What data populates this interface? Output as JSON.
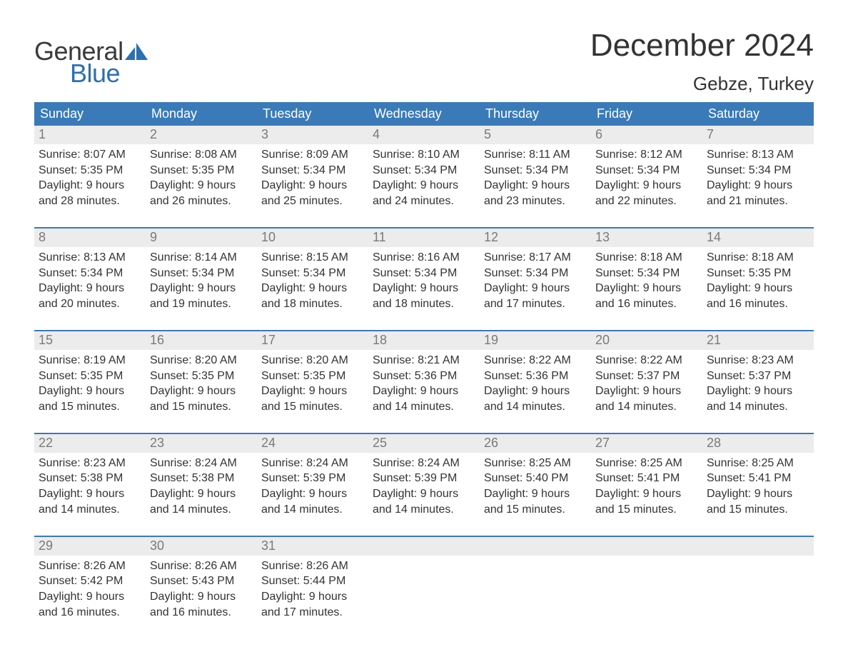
{
  "brand": {
    "word1": "General",
    "word2": "Blue",
    "icon_color": "#2c6fb3",
    "text1_color": "#3a3a3a",
    "text2_color": "#2c6fb3"
  },
  "title": "December 2024",
  "location": "Gebze, Turkey",
  "colors": {
    "header_bg": "#3a7ab8",
    "header_text": "#ffffff",
    "daynum_bg": "#ececec",
    "daynum_text": "#7a7a7a",
    "body_text": "#333333",
    "week_divider": "#3a7ab8",
    "page_bg": "#ffffff"
  },
  "typography": {
    "title_fontsize": 44,
    "location_fontsize": 26,
    "header_fontsize": 18,
    "daynum_fontsize": 18,
    "body_fontsize": 16,
    "logo_fontsize": 36
  },
  "layout": {
    "columns": 7,
    "rows": 5,
    "type": "calendar-table"
  },
  "weekdays": [
    "Sunday",
    "Monday",
    "Tuesday",
    "Wednesday",
    "Thursday",
    "Friday",
    "Saturday"
  ],
  "weeks": [
    [
      {
        "num": "1",
        "sunrise": "Sunrise: 8:07 AM",
        "sunset": "Sunset: 5:35 PM",
        "day1": "Daylight: 9 hours",
        "day2": "and 28 minutes."
      },
      {
        "num": "2",
        "sunrise": "Sunrise: 8:08 AM",
        "sunset": "Sunset: 5:35 PM",
        "day1": "Daylight: 9 hours",
        "day2": "and 26 minutes."
      },
      {
        "num": "3",
        "sunrise": "Sunrise: 8:09 AM",
        "sunset": "Sunset: 5:34 PM",
        "day1": "Daylight: 9 hours",
        "day2": "and 25 minutes."
      },
      {
        "num": "4",
        "sunrise": "Sunrise: 8:10 AM",
        "sunset": "Sunset: 5:34 PM",
        "day1": "Daylight: 9 hours",
        "day2": "and 24 minutes."
      },
      {
        "num": "5",
        "sunrise": "Sunrise: 8:11 AM",
        "sunset": "Sunset: 5:34 PM",
        "day1": "Daylight: 9 hours",
        "day2": "and 23 minutes."
      },
      {
        "num": "6",
        "sunrise": "Sunrise: 8:12 AM",
        "sunset": "Sunset: 5:34 PM",
        "day1": "Daylight: 9 hours",
        "day2": "and 22 minutes."
      },
      {
        "num": "7",
        "sunrise": "Sunrise: 8:13 AM",
        "sunset": "Sunset: 5:34 PM",
        "day1": "Daylight: 9 hours",
        "day2": "and 21 minutes."
      }
    ],
    [
      {
        "num": "8",
        "sunrise": "Sunrise: 8:13 AM",
        "sunset": "Sunset: 5:34 PM",
        "day1": "Daylight: 9 hours",
        "day2": "and 20 minutes."
      },
      {
        "num": "9",
        "sunrise": "Sunrise: 8:14 AM",
        "sunset": "Sunset: 5:34 PM",
        "day1": "Daylight: 9 hours",
        "day2": "and 19 minutes."
      },
      {
        "num": "10",
        "sunrise": "Sunrise: 8:15 AM",
        "sunset": "Sunset: 5:34 PM",
        "day1": "Daylight: 9 hours",
        "day2": "and 18 minutes."
      },
      {
        "num": "11",
        "sunrise": "Sunrise: 8:16 AM",
        "sunset": "Sunset: 5:34 PM",
        "day1": "Daylight: 9 hours",
        "day2": "and 18 minutes."
      },
      {
        "num": "12",
        "sunrise": "Sunrise: 8:17 AM",
        "sunset": "Sunset: 5:34 PM",
        "day1": "Daylight: 9 hours",
        "day2": "and 17 minutes."
      },
      {
        "num": "13",
        "sunrise": "Sunrise: 8:18 AM",
        "sunset": "Sunset: 5:34 PM",
        "day1": "Daylight: 9 hours",
        "day2": "and 16 minutes."
      },
      {
        "num": "14",
        "sunrise": "Sunrise: 8:18 AM",
        "sunset": "Sunset: 5:35 PM",
        "day1": "Daylight: 9 hours",
        "day2": "and 16 minutes."
      }
    ],
    [
      {
        "num": "15",
        "sunrise": "Sunrise: 8:19 AM",
        "sunset": "Sunset: 5:35 PM",
        "day1": "Daylight: 9 hours",
        "day2": "and 15 minutes."
      },
      {
        "num": "16",
        "sunrise": "Sunrise: 8:20 AM",
        "sunset": "Sunset: 5:35 PM",
        "day1": "Daylight: 9 hours",
        "day2": "and 15 minutes."
      },
      {
        "num": "17",
        "sunrise": "Sunrise: 8:20 AM",
        "sunset": "Sunset: 5:35 PM",
        "day1": "Daylight: 9 hours",
        "day2": "and 15 minutes."
      },
      {
        "num": "18",
        "sunrise": "Sunrise: 8:21 AM",
        "sunset": "Sunset: 5:36 PM",
        "day1": "Daylight: 9 hours",
        "day2": "and 14 minutes."
      },
      {
        "num": "19",
        "sunrise": "Sunrise: 8:22 AM",
        "sunset": "Sunset: 5:36 PM",
        "day1": "Daylight: 9 hours",
        "day2": "and 14 minutes."
      },
      {
        "num": "20",
        "sunrise": "Sunrise: 8:22 AM",
        "sunset": "Sunset: 5:37 PM",
        "day1": "Daylight: 9 hours",
        "day2": "and 14 minutes."
      },
      {
        "num": "21",
        "sunrise": "Sunrise: 8:23 AM",
        "sunset": "Sunset: 5:37 PM",
        "day1": "Daylight: 9 hours",
        "day2": "and 14 minutes."
      }
    ],
    [
      {
        "num": "22",
        "sunrise": "Sunrise: 8:23 AM",
        "sunset": "Sunset: 5:38 PM",
        "day1": "Daylight: 9 hours",
        "day2": "and 14 minutes."
      },
      {
        "num": "23",
        "sunrise": "Sunrise: 8:24 AM",
        "sunset": "Sunset: 5:38 PM",
        "day1": "Daylight: 9 hours",
        "day2": "and 14 minutes."
      },
      {
        "num": "24",
        "sunrise": "Sunrise: 8:24 AM",
        "sunset": "Sunset: 5:39 PM",
        "day1": "Daylight: 9 hours",
        "day2": "and 14 minutes."
      },
      {
        "num": "25",
        "sunrise": "Sunrise: 8:24 AM",
        "sunset": "Sunset: 5:39 PM",
        "day1": "Daylight: 9 hours",
        "day2": "and 14 minutes."
      },
      {
        "num": "26",
        "sunrise": "Sunrise: 8:25 AM",
        "sunset": "Sunset: 5:40 PM",
        "day1": "Daylight: 9 hours",
        "day2": "and 15 minutes."
      },
      {
        "num": "27",
        "sunrise": "Sunrise: 8:25 AM",
        "sunset": "Sunset: 5:41 PM",
        "day1": "Daylight: 9 hours",
        "day2": "and 15 minutes."
      },
      {
        "num": "28",
        "sunrise": "Sunrise: 8:25 AM",
        "sunset": "Sunset: 5:41 PM",
        "day1": "Daylight: 9 hours",
        "day2": "and 15 minutes."
      }
    ],
    [
      {
        "num": "29",
        "sunrise": "Sunrise: 8:26 AM",
        "sunset": "Sunset: 5:42 PM",
        "day1": "Daylight: 9 hours",
        "day2": "and 16 minutes."
      },
      {
        "num": "30",
        "sunrise": "Sunrise: 8:26 AM",
        "sunset": "Sunset: 5:43 PM",
        "day1": "Daylight: 9 hours",
        "day2": "and 16 minutes."
      },
      {
        "num": "31",
        "sunrise": "Sunrise: 8:26 AM",
        "sunset": "Sunset: 5:44 PM",
        "day1": "Daylight: 9 hours",
        "day2": "and 17 minutes."
      },
      {
        "empty": true
      },
      {
        "empty": true
      },
      {
        "empty": true
      },
      {
        "empty": true
      }
    ]
  ]
}
